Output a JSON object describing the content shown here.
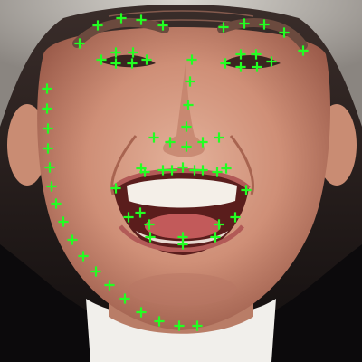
{
  "image": {
    "subject": "face-photo-with-landmarks",
    "marker_color": "#22ff22",
    "marker_shape": "plus",
    "landmark_groups": [
      {
        "name": "jaw",
        "count": 17
      },
      {
        "name": "left-eyebrow",
        "count": 5
      },
      {
        "name": "right-eyebrow",
        "count": 5
      },
      {
        "name": "nose-bridge",
        "count": 4
      },
      {
        "name": "nose-base",
        "count": 5
      },
      {
        "name": "left-eye",
        "count": 6
      },
      {
        "name": "right-eye",
        "count": 6
      },
      {
        "name": "outer-lip",
        "count": 12
      },
      {
        "name": "inner-lip",
        "count": 8
      }
    ]
  }
}
